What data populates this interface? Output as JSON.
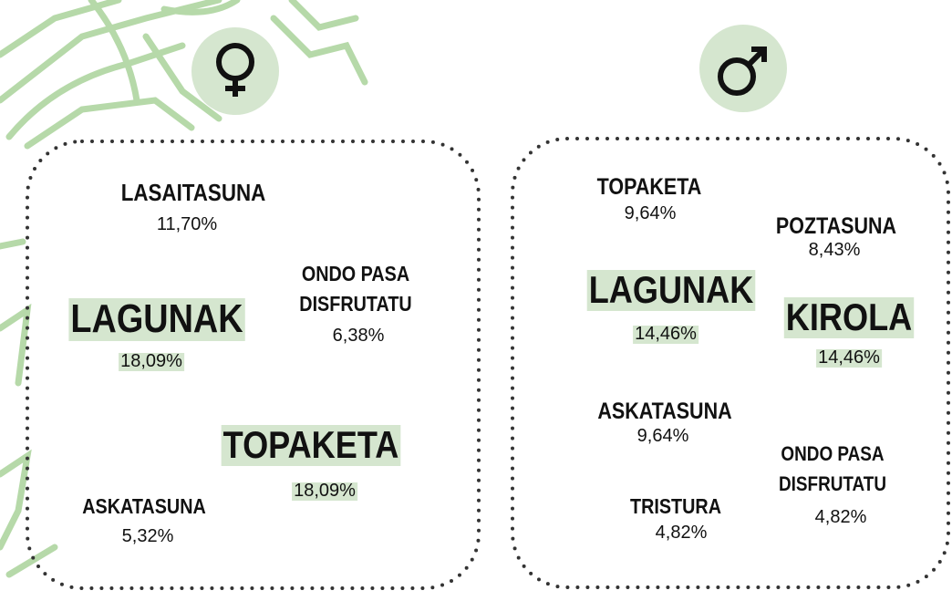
{
  "panels": [
    {
      "items": [
        {
          "lines": [
            "LASAITASUNA"
          ],
          "percent": "11,70%"
        },
        {
          "lines": [
            "ONDO PASA",
            "DISFRUTATU"
          ],
          "percent": "6,38%"
        },
        {
          "lines": [
            "LAGUNAK"
          ],
          "percent": "18,09%"
        },
        {
          "lines": [
            "TOPAKETA"
          ],
          "percent": "18,09%"
        },
        {
          "lines": [
            "ASKATASUNA"
          ],
          "percent": "5,32%"
        }
      ]
    },
    {
      "items": [
        {
          "lines": [
            "TOPAKETA"
          ],
          "percent": "9,64%"
        },
        {
          "lines": [
            "POZTASUNA"
          ],
          "percent": "8,43%"
        },
        {
          "lines": [
            "LAGUNAK"
          ],
          "percent": "14,46%"
        },
        {
          "lines": [
            "KIROLA"
          ],
          "percent": "14,46%"
        },
        {
          "lines": [
            "ASKATASUNA"
          ],
          "percent": "9,64%"
        },
        {
          "lines": [
            "ONDO PASA",
            "DISFRUTATU"
          ],
          "percent": "4,82%"
        },
        {
          "lines": [
            "TRISTURA"
          ],
          "percent": "4,82%"
        }
      ]
    }
  ]
}
